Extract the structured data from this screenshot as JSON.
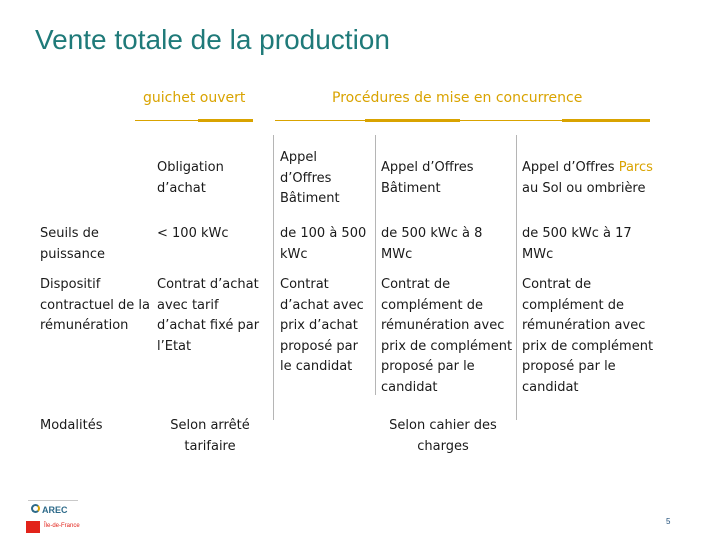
{
  "title": "Vente totale de la production",
  "headers": {
    "guichet": "guichet ouvert",
    "procedures": "Procédures de mise en concurrence"
  },
  "columns": {
    "obligation": "Obligation d’achat",
    "appel_batiment_1": "Appel d’Offres Bâtiment",
    "appel_batiment_2": "Appel d’Offres Bâtiment",
    "appel_parcs_prefix": "Appel d’Offres ",
    "appel_parcs_accent": "Parcs",
    "appel_parcs_suffix": " au Sol ou ombrière"
  },
  "rows": {
    "seuils": {
      "label": "Seuils de puissance",
      "obligation": "< 100 kWc",
      "ao1": "de 100 à 500 kWc",
      "ao2": "de 500 kWc à 8 MWc",
      "ao3": "de 500 kWc à 17 MWc"
    },
    "dispositif": {
      "label": "Dispositif contractuel de la rémunération",
      "obligation": "Contrat d’achat avec tarif d’achat fixé par l’Etat",
      "ao1": "Contrat d’achat avec prix d’achat proposé par le candidat",
      "ao2": "Contrat de complément de rémunération avec prix de complément proposé par le candidat",
      "ao3": "Contrat de complément de rémunération avec prix de complément proposé par le candidat"
    },
    "modalites": {
      "label": "Modalités",
      "guichet": "Selon arrêté tarifaire",
      "concurrence": "Selon cahier des charges"
    }
  },
  "footer": {
    "logo_text": "AREC",
    "region_text": "Île-de-France",
    "page_number": "5"
  },
  "colors": {
    "title": "#1f7a79",
    "accent": "#d9a300",
    "divider": "#b5b5b5"
  }
}
